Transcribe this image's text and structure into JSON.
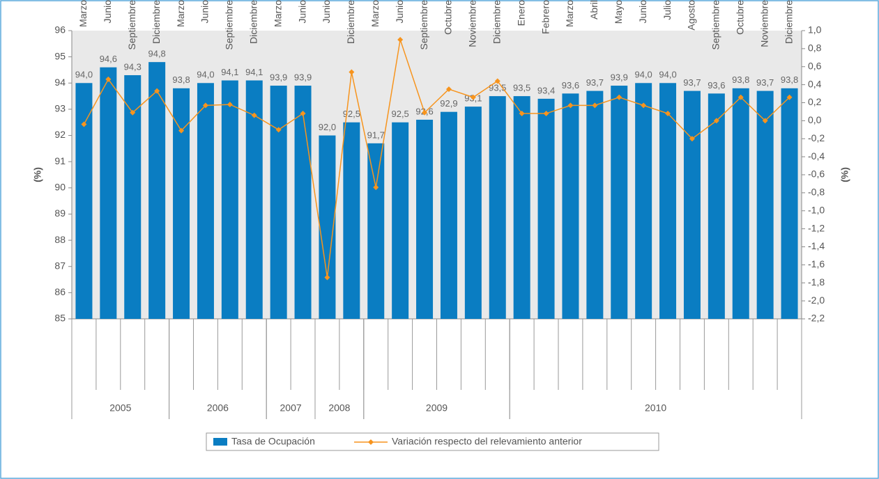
{
  "chart_data": {
    "type": "bar_line",
    "y_label": "(%)",
    "y2_label": "(%)",
    "categories": [
      "Marzo",
      "Junio",
      "Septiembre",
      "Diciembre",
      "Marzo",
      "Junio",
      "Septiembre",
      "Diciembre",
      "Marzo",
      "Junio",
      "Junio",
      "Diciembre",
      "Marzo",
      "Junio",
      "Septiembre",
      "Octubre",
      "Noviembre",
      "Diciembre",
      "Enero",
      "Febrero",
      "Marzo",
      "Abril",
      "Mayo",
      "Junio",
      "Julio",
      "Agosto",
      "Septiembre",
      "Octubre",
      "Noviembre",
      "Diciembre"
    ],
    "groups": [
      {
        "name": "2005",
        "count": 4
      },
      {
        "name": "2006",
        "count": 4
      },
      {
        "name": "2007",
        "count": 2
      },
      {
        "name": "2008",
        "count": 2
      },
      {
        "name": "2009",
        "count": 6
      },
      {
        "name": "2010",
        "count": 12
      }
    ],
    "series": [
      {
        "name": "Tasa de Ocupación",
        "color": "#0a7dc2",
        "type": "bar",
        "values": [
          94.0,
          94.6,
          94.3,
          94.8,
          93.8,
          94.0,
          94.1,
          94.1,
          93.9,
          93.9,
          92.0,
          92.5,
          91.7,
          92.5,
          92.6,
          92.9,
          93.1,
          93.5,
          93.5,
          93.4,
          93.6,
          93.7,
          93.9,
          94.0,
          94.0,
          93.7,
          93.6,
          93.8,
          93.7,
          93.8
        ],
        "value_labels": [
          "94,0",
          "94,6",
          "94,3",
          "94,8",
          "93,8",
          "94,0",
          "94,1",
          "94,1",
          "93,9",
          "93,9",
          "92,0",
          "92,5",
          "91,7",
          "92,5",
          "92,6",
          "92,9",
          "93,1",
          "93,5",
          "93,5",
          "93,4",
          "93,6",
          "93,7",
          "93,9",
          "94,0",
          "94,0",
          "93,7",
          "93,6",
          "93,8",
          "93,7",
          "93,8"
        ]
      },
      {
        "name": "Variación respecto del relevamiento anterior",
        "color": "#f7941d",
        "type": "line",
        "axis": "y2",
        "values": [
          -0.04,
          0.46,
          0.09,
          0.33,
          -0.11,
          0.17,
          0.18,
          0.06,
          -0.1,
          0.08,
          -1.74,
          0.54,
          -0.74,
          0.9,
          0.09,
          0.35,
          0.26,
          0.44,
          0.08,
          0.08,
          0.17,
          0.17,
          0.26,
          0.17,
          0.08,
          -0.2,
          0.0,
          0.26,
          0.0,
          0.26
        ]
      }
    ],
    "ylim": [
      85,
      96
    ],
    "yticks": [
      85,
      86,
      87,
      88,
      89,
      90,
      91,
      92,
      93,
      94,
      95,
      96
    ],
    "y2lim": [
      -2.2,
      1.0
    ],
    "y2ticks": [
      {
        "value": -2.2,
        "label": "-2,2"
      },
      {
        "value": -2.0,
        "label": "-2,0"
      },
      {
        "value": -1.8,
        "label": "-1,8"
      },
      {
        "value": -1.6,
        "label": "-1,6"
      },
      {
        "value": -1.4,
        "label": "-1,4"
      },
      {
        "value": -1.2,
        "label": "-1,2"
      },
      {
        "value": -1.0,
        "label": "-1,0"
      },
      {
        "value": -0.8,
        "label": "-0,8"
      },
      {
        "value": -0.6,
        "label": "-0,6"
      },
      {
        "value": -0.4,
        "label": "-0,4"
      },
      {
        "value": -0.2,
        "label": "-0,2"
      },
      {
        "value": 0.0,
        "label": "0,0"
      },
      {
        "value": 0.2,
        "label": "0,2"
      },
      {
        "value": 0.4,
        "label": "0,4"
      },
      {
        "value": 0.6,
        "label": "0,6"
      },
      {
        "value": 0.8,
        "label": "0,8"
      },
      {
        "value": 1.0,
        "label": "1,0"
      }
    ],
    "grid": false,
    "legend": "bottom"
  }
}
